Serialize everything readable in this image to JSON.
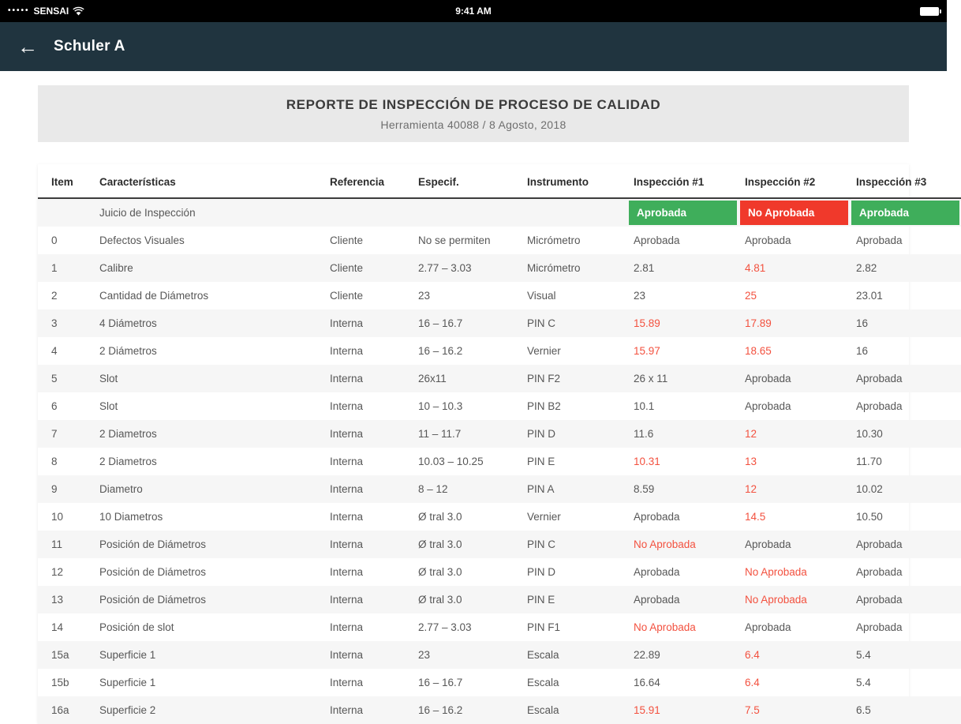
{
  "status_bar": {
    "carrier": "SENSAI",
    "time": "9:41 AM"
  },
  "nav": {
    "back_label": "←",
    "title": "Schuler A"
  },
  "report": {
    "title": "REPORTE DE INSPECCIÓN DE PROCESO DE CALIDAD",
    "subtitle": "Herramienta 40088 / 8 Agosto, 2018"
  },
  "colors": {
    "pass": "#3fae5b",
    "fail": "#f0392b",
    "fail_text": "#f3513f"
  },
  "table": {
    "columns": [
      "Item",
      "Características",
      "Referencia",
      "Especif.",
      "Instrumento",
      "Inspección #1",
      "Inspección #2",
      "Inspección #3"
    ],
    "judgement_row": {
      "label": "Juicio de Inspección",
      "inspections": [
        {
          "text": "Aprobada",
          "status": "pass"
        },
        {
          "text": "No Aprobada",
          "status": "fail"
        },
        {
          "text": "Aprobada",
          "status": "pass"
        }
      ]
    },
    "rows": [
      {
        "item": "0",
        "name": "Defectos Visuales",
        "ref": "Cliente",
        "spec": "No se permiten",
        "instr": "Micrómetro",
        "insp": [
          {
            "t": "Aprobada",
            "red": false
          },
          {
            "t": "Aprobada",
            "red": false
          },
          {
            "t": "Aprobada",
            "red": false
          }
        ]
      },
      {
        "item": "1",
        "name": "Calibre",
        "ref": "Cliente",
        "spec": "2.77 – 3.03",
        "instr": "Micrómetro",
        "insp": [
          {
            "t": "2.81",
            "red": false
          },
          {
            "t": "4.81",
            "red": true
          },
          {
            "t": "2.82",
            "red": false
          }
        ]
      },
      {
        "item": "2",
        "name": "Cantidad de Diámetros",
        "ref": "Cliente",
        "spec": "23",
        "instr": "Visual",
        "insp": [
          {
            "t": "23",
            "red": false
          },
          {
            "t": "25",
            "red": true
          },
          {
            "t": "23.01",
            "red": false
          }
        ]
      },
      {
        "item": "3",
        "name": "4 Diámetros",
        "ref": "Interna",
        "spec": "16 – 16.7",
        "instr": "PIN C",
        "insp": [
          {
            "t": "15.89",
            "red": true
          },
          {
            "t": "17.89",
            "red": true
          },
          {
            "t": "16",
            "red": false
          }
        ]
      },
      {
        "item": "4",
        "name": "2 Diámetros",
        "ref": "Interna",
        "spec": "16 – 16.2",
        "instr": "Vernier",
        "insp": [
          {
            "t": "15.97",
            "red": true
          },
          {
            "t": "18.65",
            "red": true
          },
          {
            "t": "16",
            "red": false
          }
        ]
      },
      {
        "item": "5",
        "name": "Slot",
        "ref": "Interna",
        "spec": "26x11",
        "instr": "PIN F2",
        "insp": [
          {
            "t": "26 x 11",
            "red": false
          },
          {
            "t": "Aprobada",
            "red": false
          },
          {
            "t": "Aprobada",
            "red": false
          }
        ]
      },
      {
        "item": "6",
        "name": "Slot",
        "ref": "Interna",
        "spec": "10 – 10.3",
        "instr": "PIN B2",
        "insp": [
          {
            "t": "10.1",
            "red": false
          },
          {
            "t": "Aprobada",
            "red": false
          },
          {
            "t": "Aprobada",
            "red": false
          }
        ]
      },
      {
        "item": "7",
        "name": "2 Diametros",
        "ref": "Interna",
        "spec": "11 – 11.7",
        "instr": "PIN D",
        "insp": [
          {
            "t": "11.6",
            "red": false
          },
          {
            "t": "12",
            "red": true
          },
          {
            "t": "10.30",
            "red": false
          }
        ]
      },
      {
        "item": "8",
        "name": "2 Diametros",
        "ref": "Interna",
        "spec": "10.03 – 10.25",
        "instr": "PIN E",
        "insp": [
          {
            "t": "10.31",
            "red": true
          },
          {
            "t": "13",
            "red": true
          },
          {
            "t": "11.70",
            "red": false
          }
        ]
      },
      {
        "item": "9",
        "name": "Diametro",
        "ref": "Interna",
        "spec": "8 – 12",
        "instr": "PIN A",
        "insp": [
          {
            "t": "8.59",
            "red": false
          },
          {
            "t": "12",
            "red": true
          },
          {
            "t": "10.02",
            "red": false
          }
        ]
      },
      {
        "item": "10",
        "name": "10 Diametros",
        "ref": "Interna",
        "spec": "Ø tral 3.0",
        "instr": "Vernier",
        "insp": [
          {
            "t": "Aprobada",
            "red": false
          },
          {
            "t": "14.5",
            "red": true
          },
          {
            "t": "10.50",
            "red": false
          }
        ]
      },
      {
        "item": "11",
        "name": "Posición de Diámetros",
        "ref": "Interna",
        "spec": "Ø tral 3.0",
        "instr": "PIN C",
        "insp": [
          {
            "t": "No Aprobada",
            "red": true
          },
          {
            "t": "Aprobada",
            "red": false
          },
          {
            "t": "Aprobada",
            "red": false
          }
        ]
      },
      {
        "item": "12",
        "name": "Posición de Diámetros",
        "ref": "Interna",
        "spec": "Ø tral 3.0",
        "instr": "PIN D",
        "insp": [
          {
            "t": "Aprobada",
            "red": false
          },
          {
            "t": "No Aprobada",
            "red": true
          },
          {
            "t": "Aprobada",
            "red": false
          }
        ]
      },
      {
        "item": "13",
        "name": "Posición de Diámetros",
        "ref": "Interna",
        "spec": "Ø tral 3.0",
        "instr": "PIN E",
        "insp": [
          {
            "t": "Aprobada",
            "red": false
          },
          {
            "t": "No Aprobada",
            "red": true
          },
          {
            "t": "Aprobada",
            "red": false
          }
        ]
      },
      {
        "item": "14",
        "name": "Posición de slot",
        "ref": "Interna",
        "spec": "2.77 – 3.03",
        "instr": "PIN F1",
        "insp": [
          {
            "t": "No Aprobada",
            "red": true
          },
          {
            "t": "Aprobada",
            "red": false
          },
          {
            "t": "Aprobada",
            "red": false
          }
        ]
      },
      {
        "item": "15a",
        "name": "Superficie 1",
        "ref": "Interna",
        "spec": "23",
        "instr": "Escala",
        "insp": [
          {
            "t": "22.89",
            "red": false
          },
          {
            "t": "6.4",
            "red": true
          },
          {
            "t": "5.4",
            "red": false
          }
        ]
      },
      {
        "item": "15b",
        "name": "Superficie 1",
        "ref": "Interna",
        "spec": "16 – 16.7",
        "instr": "Escala",
        "insp": [
          {
            "t": "16.64",
            "red": false
          },
          {
            "t": "6.4",
            "red": true
          },
          {
            "t": "5.4",
            "red": false
          }
        ]
      },
      {
        "item": "16a",
        "name": "Superficie 2",
        "ref": "Interna",
        "spec": "16 – 16.2",
        "instr": "Escala",
        "insp": [
          {
            "t": "15.91",
            "red": true
          },
          {
            "t": "7.5",
            "red": true
          },
          {
            "t": "6.5",
            "red": false
          }
        ]
      }
    ]
  }
}
